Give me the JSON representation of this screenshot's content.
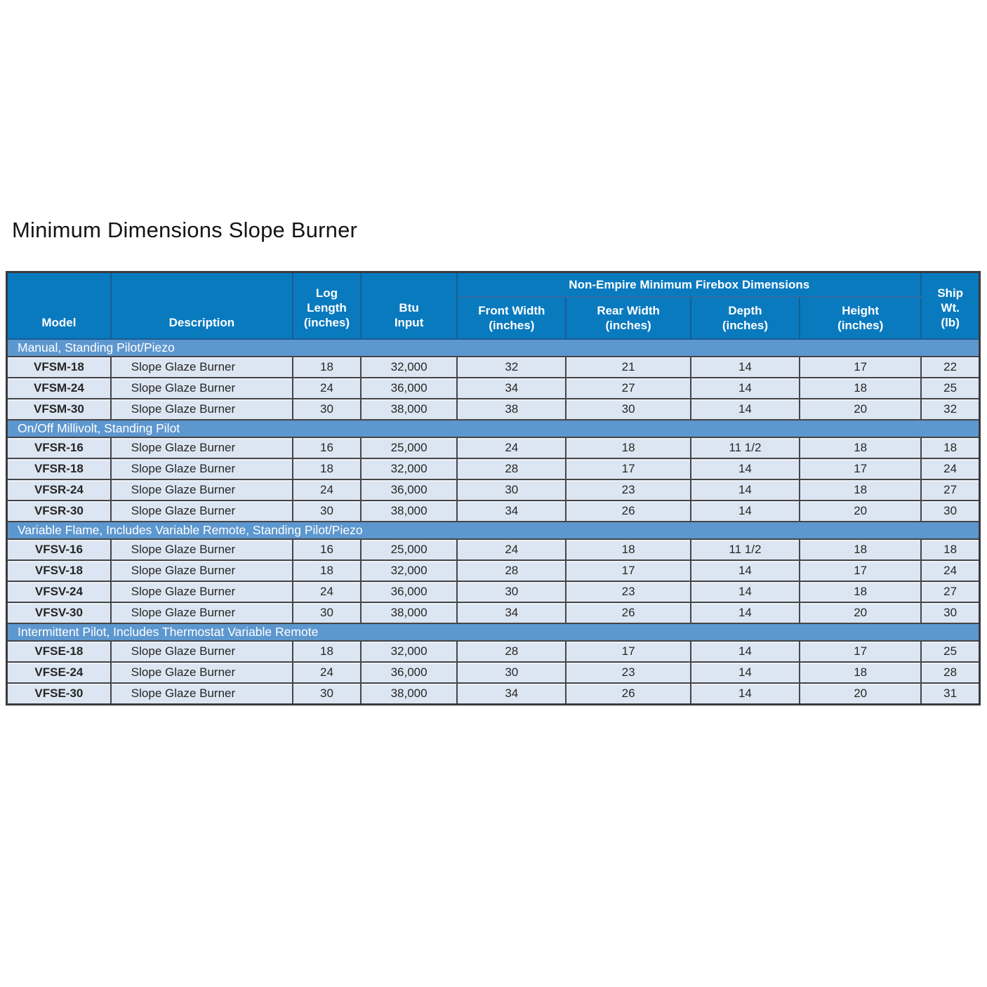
{
  "page": {
    "title": "Minimum Dimensions Slope Burner"
  },
  "colors": {
    "header_blue": "#0a7abf",
    "section_blue": "#5d97cf",
    "row_background": "#dce6f2",
    "border_dark": "#454547"
  },
  "table": {
    "header": {
      "model": "Model",
      "description": "Description",
      "log_length": "Log\nLength\n(inches)",
      "btu_input": "Btu\nInput",
      "firebox_group": "Non-Empire Minimum Firebox Dimensions",
      "front_width": "Front Width\n(inches)",
      "rear_width": "Rear Width\n(inches)",
      "depth": "Depth\n(inches)",
      "height": "Height\n(inches)",
      "ship_wt": "Ship\nWt.\n(lb)"
    },
    "sections": [
      {
        "title": "Manual, Standing Pilot/Piezo",
        "rows": [
          [
            "VFSM-18",
            "Slope Glaze Burner",
            "18",
            "32,000",
            "32",
            "21",
            "14",
            "17",
            "22"
          ],
          [
            "VFSM-24",
            "Slope Glaze Burner",
            "24",
            "36,000",
            "34",
            "27",
            "14",
            "18",
            "25"
          ],
          [
            "VFSM-30",
            "Slope Glaze Burner",
            "30",
            "38,000",
            "38",
            "30",
            "14",
            "20",
            "32"
          ]
        ]
      },
      {
        "title": "On/Off Millivolt, Standing Pilot",
        "rows": [
          [
            "VFSR-16",
            "Slope Glaze Burner",
            "16",
            "25,000",
            "24",
            "18",
            "11 1/2",
            "18",
            "18"
          ],
          [
            "VFSR-18",
            "Slope Glaze Burner",
            "18",
            "32,000",
            "28",
            "17",
            "14",
            "17",
            "24"
          ],
          [
            "VFSR-24",
            "Slope Glaze Burner",
            "24",
            "36,000",
            "30",
            "23",
            "14",
            "18",
            "27"
          ],
          [
            "VFSR-30",
            "Slope Glaze Burner",
            "30",
            "38,000",
            "34",
            "26",
            "14",
            "20",
            "30"
          ]
        ]
      },
      {
        "title": "Variable Flame, Includes Variable Remote, Standing Pilot/Piezo",
        "rows": [
          [
            "VFSV-16",
            "Slope Glaze Burner",
            "16",
            "25,000",
            "24",
            "18",
            "11 1/2",
            "18",
            "18"
          ],
          [
            "VFSV-18",
            "Slope Glaze Burner",
            "18",
            "32,000",
            "28",
            "17",
            "14",
            "17",
            "24"
          ],
          [
            "VFSV-24",
            "Slope Glaze Burner",
            "24",
            "36,000",
            "30",
            "23",
            "14",
            "18",
            "27"
          ],
          [
            "VFSV-30",
            "Slope Glaze Burner",
            "30",
            "38,000",
            "34",
            "26",
            "14",
            "20",
            "30"
          ]
        ]
      },
      {
        "title": "Intermittent Pilot, Includes Thermostat Variable Remote",
        "rows": [
          [
            "VFSE-18",
            "Slope Glaze Burner",
            "18",
            "32,000",
            "28",
            "17",
            "14",
            "17",
            "25"
          ],
          [
            "VFSE-24",
            "Slope Glaze Burner",
            "24",
            "36,000",
            "30",
            "23",
            "14",
            "18",
            "28"
          ],
          [
            "VFSE-30",
            "Slope Glaze Burner",
            "30",
            "38,000",
            "34",
            "26",
            "14",
            "20",
            "31"
          ]
        ]
      }
    ]
  }
}
